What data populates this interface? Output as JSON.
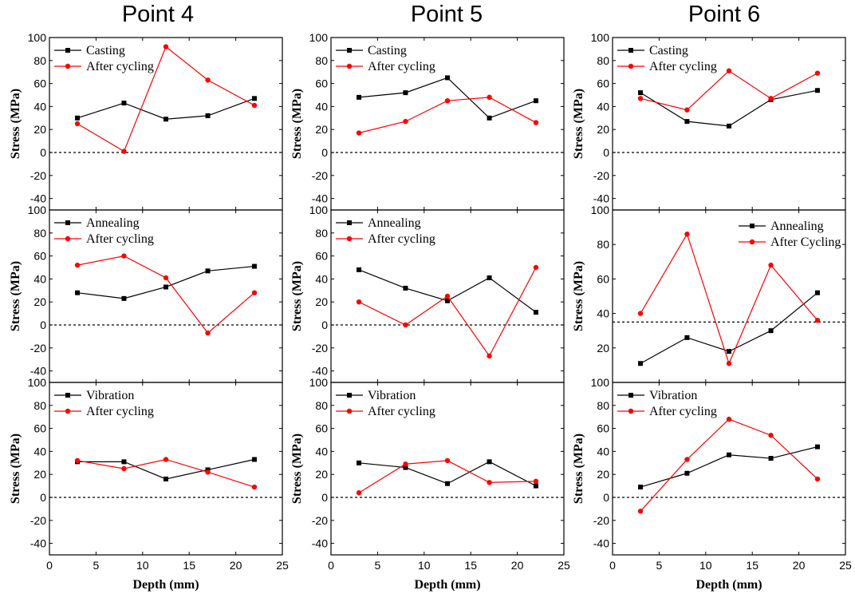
{
  "column_titles": [
    "Point 4",
    "Point 5",
    "Point 6"
  ],
  "colors": {
    "reference": "#000000",
    "after_cycling": "#ff0000",
    "zero_line": "#000000"
  },
  "chart_data": [
    {
      "id": "p4-casting",
      "type": "line",
      "ylabel": "Stress (MPa)",
      "xlabel": "",
      "ylim": [
        -50,
        100
      ],
      "yticks": [
        100,
        80,
        60,
        40,
        20,
        0,
        -20,
        -40
      ],
      "xlim": [
        0,
        25
      ],
      "show_xticks": false,
      "zero_line": 0,
      "legend_position": "top-left",
      "series": [
        {
          "name": "Casting",
          "marker": "square",
          "color": "#000000",
          "x": [
            3,
            8,
            12.5,
            17,
            22
          ],
          "y": [
            30,
            43,
            29,
            32,
            47
          ]
        },
        {
          "name": "After cycling",
          "marker": "circle",
          "color": "#ff0000",
          "x": [
            3,
            8,
            12.5,
            17,
            22
          ],
          "y": [
            25,
            1,
            92,
            63,
            41
          ]
        }
      ]
    },
    {
      "id": "p5-casting",
      "type": "line",
      "ylabel": "Stress (MPa)",
      "xlabel": "",
      "ylim": [
        -50,
        100
      ],
      "yticks": [
        100,
        80,
        60,
        40,
        20,
        0,
        -20,
        -40
      ],
      "xlim": [
        0,
        25
      ],
      "show_xticks": false,
      "zero_line": 0,
      "legend_position": "top-left",
      "series": [
        {
          "name": "Casting",
          "marker": "square",
          "color": "#000000",
          "x": [
            3,
            8,
            12.5,
            17,
            22
          ],
          "y": [
            48,
            52,
            65,
            30,
            45
          ]
        },
        {
          "name": "After cycling",
          "marker": "circle",
          "color": "#ff0000",
          "x": [
            3,
            8,
            12.5,
            17,
            22
          ],
          "y": [
            17,
            27,
            45,
            48,
            26
          ]
        }
      ]
    },
    {
      "id": "p6-casting",
      "type": "line",
      "ylabel": "Stress (MPa)",
      "xlabel": "",
      "ylim": [
        -50,
        100
      ],
      "yticks": [
        100,
        80,
        60,
        40,
        20,
        0,
        -20,
        -40
      ],
      "xlim": [
        0,
        25
      ],
      "show_xticks": false,
      "zero_line": 0,
      "legend_position": "top-left",
      "series": [
        {
          "name": "Casting",
          "marker": "square",
          "color": "#000000",
          "x": [
            3,
            8,
            12.5,
            17,
            22
          ],
          "y": [
            52,
            27,
            23,
            46,
            54
          ]
        },
        {
          "name": "After cycling",
          "marker": "circle",
          "color": "#ff0000",
          "x": [
            3,
            8,
            12.5,
            17,
            22
          ],
          "y": [
            47,
            37,
            71,
            47,
            69
          ]
        }
      ]
    },
    {
      "id": "p4-annealing",
      "type": "line",
      "ylabel": "Stress (MPa)",
      "xlabel": "",
      "ylim": [
        -50,
        100
      ],
      "yticks": [
        100,
        80,
        60,
        40,
        20,
        0,
        -20,
        -40
      ],
      "xlim": [
        0,
        25
      ],
      "show_xticks": false,
      "zero_line": 0,
      "legend_position": "top-left",
      "series": [
        {
          "name": "Annealing",
          "marker": "square",
          "color": "#000000",
          "x": [
            3,
            8,
            12.5,
            17,
            22
          ],
          "y": [
            28,
            23,
            33,
            47,
            51
          ]
        },
        {
          "name": "After cycling",
          "marker": "circle",
          "color": "#ff0000",
          "x": [
            3,
            8,
            12.5,
            17,
            22
          ],
          "y": [
            52,
            60,
            41,
            -7,
            28
          ]
        }
      ]
    },
    {
      "id": "p5-annealing",
      "type": "line",
      "ylabel": "Stress (MPa)",
      "xlabel": "",
      "ylim": [
        -50,
        100
      ],
      "yticks": [
        100,
        80,
        60,
        40,
        20,
        0,
        -20,
        -40
      ],
      "xlim": [
        0,
        25
      ],
      "show_xticks": false,
      "zero_line": 0,
      "legend_position": "top-left",
      "series": [
        {
          "name": "Annealing",
          "marker": "square",
          "color": "#000000",
          "x": [
            3,
            8,
            12.5,
            17,
            22
          ],
          "y": [
            48,
            32,
            21,
            41,
            11
          ]
        },
        {
          "name": "After cycling",
          "marker": "circle",
          "color": "#ff0000",
          "x": [
            3,
            8,
            12.5,
            17,
            22
          ],
          "y": [
            20,
            0,
            25,
            -27,
            50
          ]
        }
      ]
    },
    {
      "id": "p6-annealing",
      "type": "line",
      "ylabel": "Stress (MPa)",
      "xlabel": "",
      "ylim": [
        0,
        100
      ],
      "yticks": [
        100,
        80,
        60,
        40,
        20
      ],
      "xlim": [
        0,
        25
      ],
      "show_xticks": false,
      "zero_line": 35,
      "legend_position": "top-right",
      "series": [
        {
          "name": "Annealing",
          "marker": "square",
          "color": "#000000",
          "x": [
            3,
            8,
            12.5,
            17,
            22
          ],
          "y": [
            11,
            26,
            18,
            30,
            52
          ]
        },
        {
          "name": "After Cycling",
          "marker": "circle",
          "color": "#ff0000",
          "x": [
            3,
            8,
            12.5,
            17,
            22
          ],
          "y": [
            40,
            86,
            11,
            68,
            36
          ]
        }
      ]
    },
    {
      "id": "p4-vibration",
      "type": "line",
      "ylabel": "Stress (MPa)",
      "xlabel": "Depth (mm)",
      "ylim": [
        -50,
        100
      ],
      "yticks": [
        100,
        80,
        60,
        40,
        20,
        0,
        -20,
        -40
      ],
      "xlim": [
        0,
        25
      ],
      "show_xticks": true,
      "xticks": [
        0,
        5,
        10,
        15,
        20,
        25
      ],
      "zero_line": 0,
      "legend_position": "top-left",
      "series": [
        {
          "name": "Vibration",
          "marker": "square",
          "color": "#000000",
          "x": [
            3,
            8,
            12.5,
            17,
            22
          ],
          "y": [
            31,
            31,
            16,
            24,
            33
          ]
        },
        {
          "name": "After cycling",
          "marker": "circle",
          "color": "#ff0000",
          "x": [
            3,
            8,
            12.5,
            17,
            22
          ],
          "y": [
            32,
            25,
            33,
            22,
            9
          ]
        }
      ]
    },
    {
      "id": "p5-vibration",
      "type": "line",
      "ylabel": "Stress (MPa)",
      "xlabel": "Depth  (mm)",
      "ylim": [
        -50,
        100
      ],
      "yticks": [
        100,
        80,
        60,
        40,
        20,
        0,
        -20,
        -40
      ],
      "xlim": [
        0,
        25
      ],
      "show_xticks": true,
      "xticks": [
        0,
        5,
        10,
        15,
        20,
        25
      ],
      "zero_line": 0,
      "legend_position": "top-left",
      "series": [
        {
          "name": "Vibration",
          "marker": "square",
          "color": "#000000",
          "x": [
            3,
            8,
            12.5,
            17,
            22
          ],
          "y": [
            30,
            26,
            12,
            31,
            10
          ]
        },
        {
          "name": "After cycling",
          "marker": "circle",
          "color": "#ff0000",
          "x": [
            3,
            8,
            12.5,
            17,
            22
          ],
          "y": [
            4,
            29,
            32,
            13,
            14
          ]
        }
      ]
    },
    {
      "id": "p6-vibration",
      "type": "line",
      "ylabel": "Stress (MPa)",
      "xlabel": "Depth (mm)",
      "ylim": [
        -50,
        100
      ],
      "yticks": [
        100,
        80,
        60,
        40,
        20,
        0,
        -20,
        -40
      ],
      "xlim": [
        0,
        25
      ],
      "show_xticks": true,
      "xticks": [
        0,
        5,
        10,
        15,
        20,
        25
      ],
      "zero_line": 0,
      "legend_position": "top-left",
      "series": [
        {
          "name": "Vibration",
          "marker": "square",
          "color": "#000000",
          "x": [
            3,
            8,
            12.5,
            17,
            22
          ],
          "y": [
            9,
            21,
            37,
            34,
            44
          ]
        },
        {
          "name": "After cycling",
          "marker": "circle",
          "color": "#ff0000",
          "x": [
            3,
            8,
            12.5,
            17,
            22
          ],
          "y": [
            -12,
            33,
            68,
            54,
            16
          ]
        }
      ]
    }
  ]
}
